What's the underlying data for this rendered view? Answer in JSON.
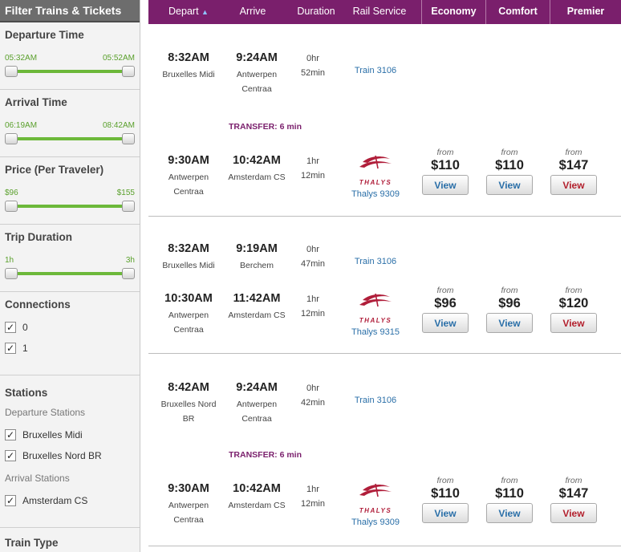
{
  "sidebar": {
    "header": "Filter Trains & Tickets",
    "departure_time": {
      "title": "Departure Time",
      "min": "05:32AM",
      "max": "05:52AM"
    },
    "arrival_time": {
      "title": "Arrival Time",
      "min": "06:19AM",
      "max": "08:42AM"
    },
    "price": {
      "title": "Price (Per Traveler)",
      "min": "$96",
      "max": "$155"
    },
    "trip_duration": {
      "title": "Trip Duration",
      "min": "1h",
      "max": "3h"
    },
    "connections": {
      "title": "Connections",
      "options": [
        "0",
        "1"
      ]
    },
    "stations": {
      "title": "Stations",
      "departure_label": "Departure Stations",
      "departure": [
        "Bruxelles Midi",
        "Bruxelles Nord BR"
      ],
      "arrival_label": "Arrival Stations",
      "arrival": [
        "Amsterdam CS"
      ]
    },
    "train_type": {
      "title": "Train Type"
    }
  },
  "columns": {
    "depart": "Depart",
    "arrive": "Arrive",
    "duration": "Duration",
    "rail_service": "Rail Service",
    "economy": "Economy",
    "comfort": "Comfort",
    "premier": "Premier"
  },
  "sort_arrow": "▲",
  "checkmark": "✓",
  "from_label": "from",
  "view_label": "View",
  "logo_text": "THALYS",
  "colors": {
    "header_bg": "#7a1f6c",
    "slider_green": "#6cb83a",
    "link_blue": "#2a6fa8",
    "premier_red": "#b3202d",
    "thalys_red": "#b01e3a"
  },
  "results": [
    {
      "seg1": {
        "depart": "8:32AM",
        "depart_station": [
          "Bruxelles Midi"
        ],
        "arrive": "9:24AM",
        "arrive_station": [
          "Antwerpen",
          "Centraa"
        ],
        "dur1": "0hr",
        "dur2": "52min",
        "service": "Train 3106"
      },
      "transfer": "TRANSFER: 6 min",
      "seg2": {
        "depart": "9:30AM",
        "depart_station": [
          "Antwerpen",
          "Centraa"
        ],
        "arrive": "10:42AM",
        "arrive_station": [
          "Amsterdam CS"
        ],
        "dur1": "1hr",
        "dur2": "12min",
        "service": "Thalys 9309"
      },
      "economy": "$110",
      "comfort": "$110",
      "premier": "$147"
    },
    {
      "seg1": {
        "depart": "8:32AM",
        "depart_station": [
          "Bruxelles Midi"
        ],
        "arrive": "9:19AM",
        "arrive_station": [
          "Berchem"
        ],
        "dur1": "0hr",
        "dur2": "47min",
        "service": "Train 3106"
      },
      "transfer": "",
      "seg2": {
        "depart": "10:30AM",
        "depart_station": [
          "Antwerpen",
          "Centraa"
        ],
        "arrive": "11:42AM",
        "arrive_station": [
          "Amsterdam CS"
        ],
        "dur1": "1hr",
        "dur2": "12min",
        "service": "Thalys 9315"
      },
      "economy": "$96",
      "comfort": "$96",
      "premier": "$120"
    },
    {
      "seg1": {
        "depart": "8:42AM",
        "depart_station": [
          "Bruxelles Nord",
          "BR"
        ],
        "arrive": "9:24AM",
        "arrive_station": [
          "Antwerpen",
          "Centraa"
        ],
        "dur1": "0hr",
        "dur2": "42min",
        "service": "Train 3106"
      },
      "transfer": "TRANSFER: 6 min",
      "seg2": {
        "depart": "9:30AM",
        "depart_station": [
          "Antwerpen",
          "Centraa"
        ],
        "arrive": "10:42AM",
        "arrive_station": [
          "Amsterdam CS"
        ],
        "dur1": "1hr",
        "dur2": "12min",
        "service": "Thalys 9309"
      },
      "economy": "$110",
      "comfort": "$110",
      "premier": "$147"
    }
  ]
}
